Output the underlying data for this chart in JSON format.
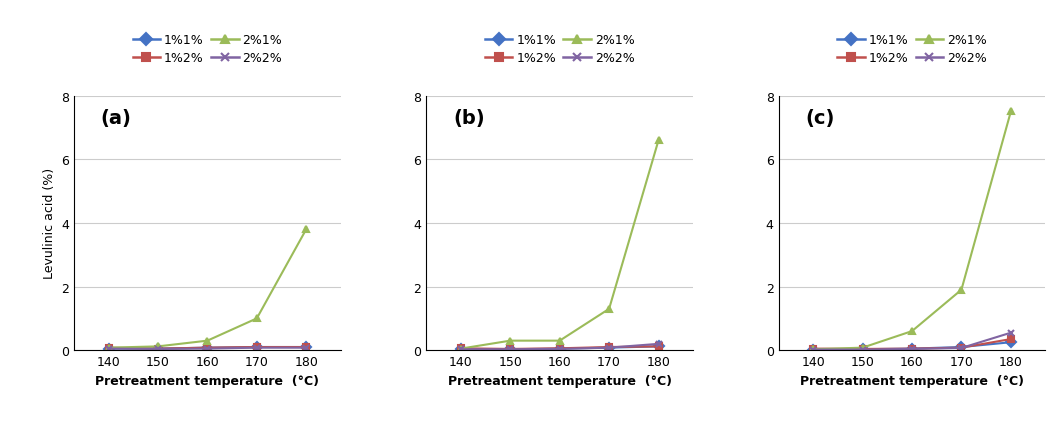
{
  "x": [
    140,
    150,
    160,
    170,
    180
  ],
  "panels": [
    {
      "label": "(a)",
      "series": {
        "1%1%": [
          0.05,
          0.05,
          0.08,
          0.1,
          0.1
        ],
        "1%2%": [
          0.08,
          0.05,
          0.08,
          0.1,
          0.1
        ],
        "2%1%": [
          0.08,
          0.12,
          0.3,
          1.0,
          3.8
        ],
        "2%2%": [
          0.05,
          0.04,
          0.05,
          0.08,
          0.08
        ]
      }
    },
    {
      "label": "(b)",
      "series": {
        "1%1%": [
          0.03,
          0.03,
          0.05,
          0.08,
          0.12
        ],
        "1%2%": [
          0.06,
          0.04,
          0.06,
          0.1,
          0.12
        ],
        "2%1%": [
          0.05,
          0.3,
          0.3,
          1.3,
          6.6
        ],
        "2%2%": [
          0.03,
          0.03,
          0.04,
          0.08,
          0.2
        ]
      }
    },
    {
      "label": "(c)",
      "series": {
        "1%1%": [
          0.02,
          0.03,
          0.05,
          0.1,
          0.25
        ],
        "1%2%": [
          0.05,
          0.04,
          0.05,
          0.08,
          0.35
        ],
        "2%1%": [
          0.03,
          0.08,
          0.6,
          1.9,
          7.5
        ],
        "2%2%": [
          0.02,
          0.02,
          0.04,
          0.07,
          0.55
        ]
      }
    }
  ],
  "colors": {
    "1%1%": "#4472C4",
    "1%2%": "#C0504D",
    "2%1%": "#9BBB59",
    "2%2%": "#8064A2"
  },
  "markers": {
    "1%1%": "D",
    "1%2%": "s",
    "2%1%": "^",
    "2%2%": "x"
  },
  "ylim": [
    0,
    8
  ],
  "yticks": [
    0,
    2,
    4,
    6,
    8
  ],
  "ylabel": "Levulinic acid (%)",
  "xlabel": "Pretreatment temperature  (°C)",
  "legend_labels": [
    "1%1%",
    "1%2%",
    "2%1%",
    "2%2%"
  ],
  "label_fontsize": 9,
  "tick_fontsize": 9,
  "panel_label_fontsize": 14
}
